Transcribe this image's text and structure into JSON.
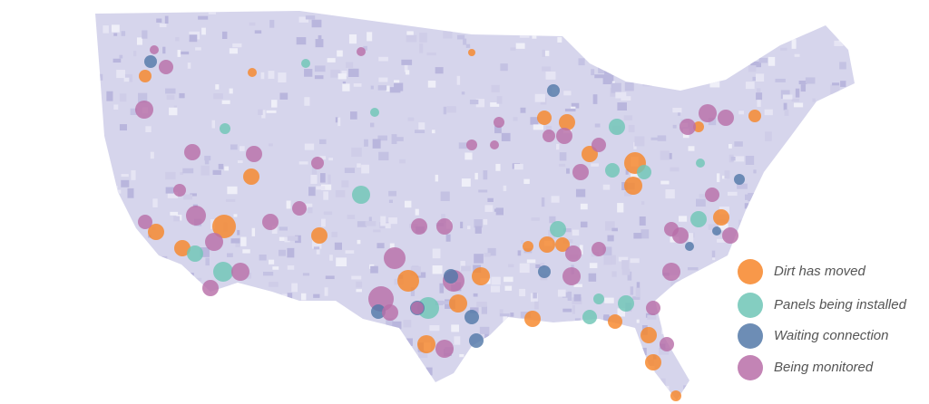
{
  "legend": [
    {
      "label": "Dirt has moved",
      "color": "#f7862a"
    },
    {
      "label": "Panels being installed",
      "color": "#6fc6b6"
    },
    {
      "label": "Waiting connection",
      "color": "#5379a8"
    },
    {
      "label": "Being monitored",
      "color": "#b86fa8"
    }
  ]
}
